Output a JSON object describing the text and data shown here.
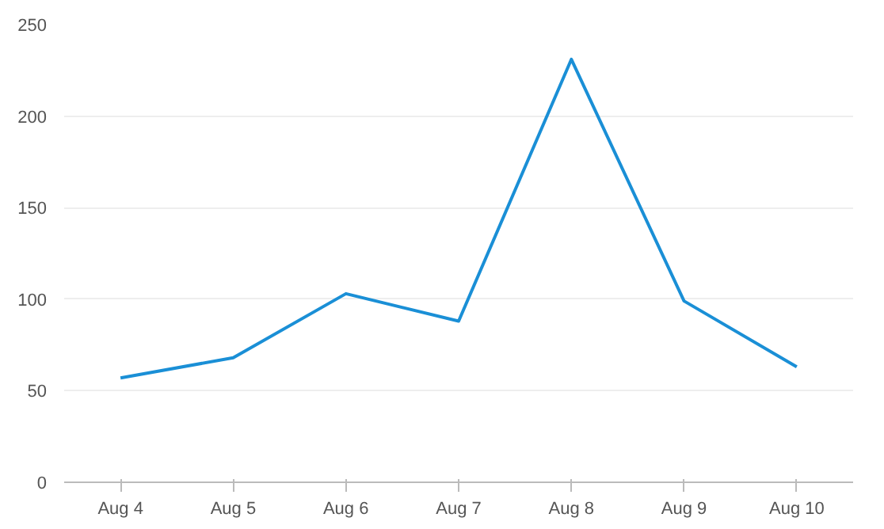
{
  "chart_data": {
    "type": "line",
    "categories": [
      "Aug 4",
      "Aug 5",
      "Aug 6",
      "Aug 7",
      "Aug 8",
      "Aug 9",
      "Aug 10"
    ],
    "series": [
      {
        "color": "#1a8fd6",
        "values": [
          57,
          68,
          103,
          88,
          231,
          99,
          63
        ]
      }
    ],
    "ylim": [
      0,
      250
    ],
    "yticks": [
      0,
      50,
      100,
      150,
      200,
      250
    ],
    "grid": "y",
    "marker": "none",
    "line_style": "solid"
  }
}
